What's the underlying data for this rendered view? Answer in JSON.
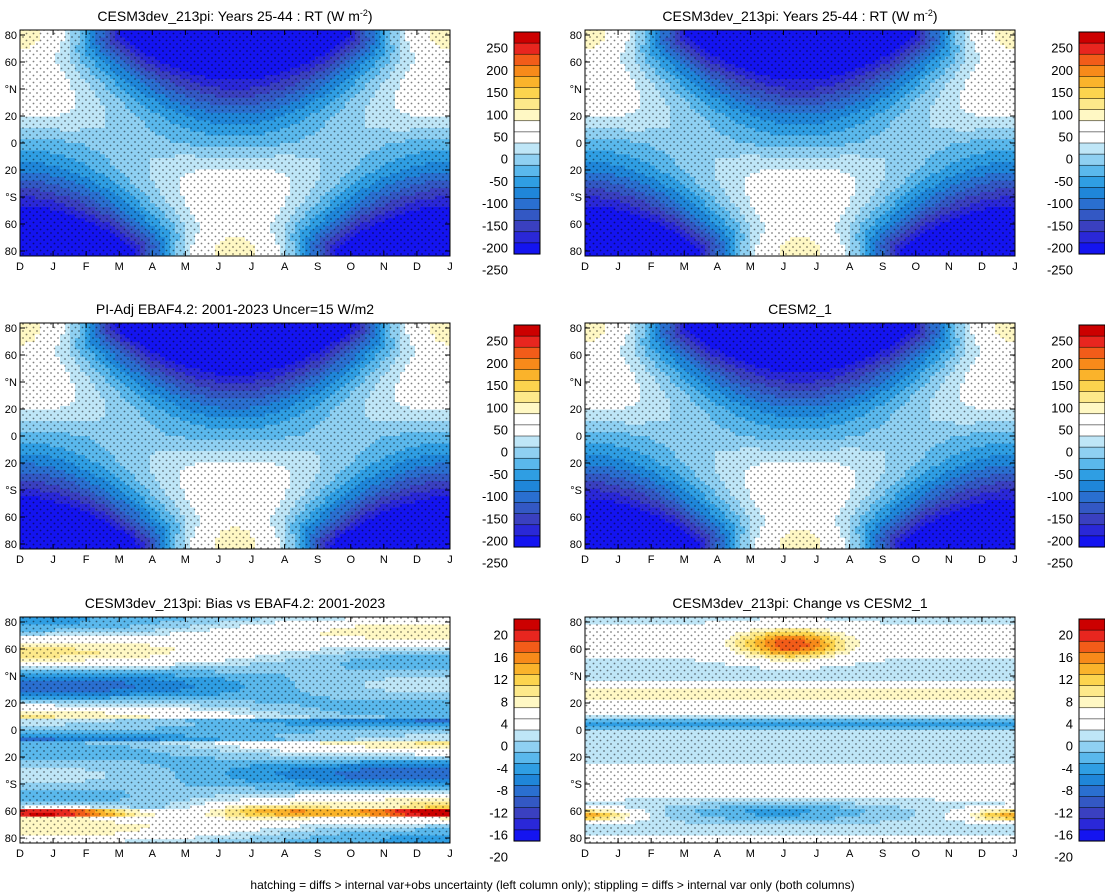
{
  "footer_note": "hatching = diffs > internal var+obs uncertainty (left column only); stippling = diffs > internal var only (both columns)",
  "month_labels": [
    "D",
    "J",
    "F",
    "M",
    "A",
    "M",
    "J",
    "J",
    "A",
    "S",
    "O",
    "N",
    "D",
    "J"
  ],
  "lat_labels": [
    "80",
    "60",
    "°N",
    "20",
    "0",
    "20",
    "°S",
    "60",
    "80"
  ],
  "colorbars": {
    "full": {
      "labels": [
        "250",
        "200",
        "150",
        "100",
        "50",
        "0",
        "-50",
        "-100",
        "-150",
        "-200",
        "-250"
      ],
      "colors": [
        "#cc0000",
        "#e8261f",
        "#f25c19",
        "#f78a1a",
        "#fab32b",
        "#fcd44e",
        "#fde98a",
        "#fff8c4",
        "#ffffff",
        "#ffffff",
        "#bfe6f7",
        "#8fd0f2",
        "#5ab8ec",
        "#2f9ee3",
        "#1f86d9",
        "#2a6fd0",
        "#3358c4",
        "#3a40c0",
        "#2a28d8",
        "#1414f0"
      ]
    },
    "diff": {
      "labels": [
        "20",
        "16",
        "12",
        "8",
        "4",
        "0",
        "-4",
        "-8",
        "-12",
        "-16",
        "-20"
      ],
      "colors": [
        "#cc0000",
        "#e8261f",
        "#f25c19",
        "#f78a1a",
        "#fab32b",
        "#fcd44e",
        "#fde98a",
        "#fff8c4",
        "#ffffff",
        "#ffffff",
        "#bfe6f7",
        "#8fd0f2",
        "#5ab8ec",
        "#2f9ee3",
        "#1f86d9",
        "#2a6fd0",
        "#3358c4",
        "#3a40c0",
        "#2a28d8",
        "#1414f0"
      ]
    }
  },
  "chart_data": [
    {
      "type": "heatmap",
      "kind": "full",
      "hatch": true,
      "title": "CESM3dev_213pi: Years 25-44 : RT (W m",
      "title_sup": "-2",
      "title_suffix": ")",
      "x": "months D..J",
      "y": "latitude 90N..90S",
      "clim": [
        -275,
        275
      ]
    },
    {
      "type": "heatmap",
      "kind": "full",
      "hatch": false,
      "title": "CESM3dev_213pi: Years 25-44 : RT (W m",
      "title_sup": "-2",
      "title_suffix": ")",
      "x": "months D..J",
      "y": "latitude 90N..90S",
      "clim": [
        -275,
        275
      ]
    },
    {
      "type": "heatmap",
      "kind": "full",
      "hatch": true,
      "title": "PI-Adj EBAF4.2: 2001-2023 Uncer=15 W/m2",
      "x": "months D..J",
      "y": "latitude 90N..90S",
      "clim": [
        -275,
        275
      ]
    },
    {
      "type": "heatmap",
      "kind": "full",
      "hatch": false,
      "title": "CESM2_1",
      "x": "months D..J",
      "y": "latitude 90N..90S",
      "clim": [
        -275,
        275
      ]
    },
    {
      "type": "heatmap",
      "kind": "bias",
      "hatch": true,
      "title": "CESM3dev_213pi: Bias vs EBAF4.2: 2001-2023",
      "x": "months D..J",
      "y": "latitude 90N..90S",
      "clim": [
        -22,
        22
      ]
    },
    {
      "type": "heatmap",
      "kind": "change",
      "hatch": false,
      "title": "CESM3dev_213pi: Change vs CESM2_1",
      "x": "months D..J",
      "y": "latitude 90N..90S",
      "clim": [
        -22,
        22
      ]
    }
  ]
}
